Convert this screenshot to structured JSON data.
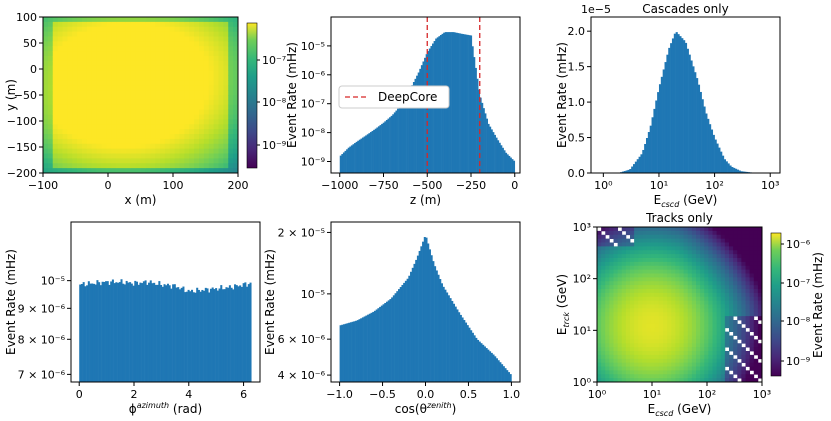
{
  "figure": {
    "panels": [
      {
        "id": "xy",
        "xlabel": "x (m)",
        "ylabel": "y (m)",
        "title": "",
        "xticks": [
          "−100",
          "0",
          "100",
          "200"
        ],
        "yticks": [
          "100",
          "50",
          "0",
          "−50",
          "−100",
          "−150",
          "−200"
        ],
        "colorbar": {
          "ticks": [
            "10⁻⁷",
            "10⁻⁸",
            "10⁻⁹"
          ],
          "label": ""
        }
      },
      {
        "id": "z",
        "xlabel": "z (m)",
        "ylabel": "Event Rate (mHz)",
        "title": "",
        "xticks": [
          "−1000",
          "−750",
          "−500",
          "−250",
          "0"
        ],
        "yticks": [
          "10⁻⁵",
          "10⁻⁶",
          "10⁻⁷",
          "10⁻⁸",
          "10⁻⁹"
        ],
        "legend": "DeepCore"
      },
      {
        "id": "ecscd",
        "xlabel": "E",
        "xlabel_sub": "cscd",
        "xlabel_unit": " (GeV)",
        "ylabel": "Event Rate (mHz)",
        "title": "Cascades only",
        "offset": "1e−5",
        "xticks": [
          "10⁰",
          "10¹",
          "10²",
          "10³"
        ],
        "yticks": [
          "0.0",
          "0.5",
          "1.0",
          "1.5",
          "2.0"
        ]
      },
      {
        "id": "phi",
        "xlabel": "ϕ",
        "xlabel_sup": "azimuth",
        "xlabel_unit": " (rad)",
        "ylabel": "Event Rate (mHz)",
        "title": "",
        "xticks": [
          "0",
          "2",
          "4",
          "6"
        ],
        "yticks": [
          "10⁻⁵",
          "9 × 10⁻⁶",
          "8 × 10⁻⁶",
          "7 × 10⁻⁶"
        ]
      },
      {
        "id": "cos",
        "xlabel": "cos(θ",
        "xlabel_sup": "zenith",
        "xlabel_unit": ")",
        "ylabel": "Event Rate (mHz)",
        "title": "",
        "xticks": [
          "−1.0",
          "−0.5",
          "0.0",
          "0.5",
          "1.0"
        ],
        "yticks": [
          "2 × 10⁻⁵",
          "10⁻⁵",
          "6 × 10⁻⁶",
          "4 × 10⁻⁶"
        ]
      },
      {
        "id": "tracks",
        "xlabel": "E",
        "xlabel_sub": "cscd",
        "xlabel_unit": " (GeV)",
        "ylabel": "E",
        "ylabel_sub": "trck",
        "ylabel_unit": " (GeV)",
        "title": "Tracks only",
        "xticks": [
          "10⁰",
          "10¹",
          "10²",
          "10³"
        ],
        "yticks": [
          "10³",
          "10²",
          "10¹",
          "10⁰"
        ],
        "colorbar": {
          "ticks": [
            "10⁻⁶",
            "10⁻⁷",
            "10⁻⁸",
            "10⁻⁹"
          ],
          "label": "Event Rate (mHz)"
        }
      }
    ]
  },
  "chart_data": [
    {
      "type": "heatmap",
      "xlabel": "x (m)",
      "ylabel": "y (m)",
      "xlim": [
        -100,
        200
      ],
      "ylim": [
        -200,
        100
      ],
      "colorscale": "viridis",
      "color_range": [
        3e-10,
        3e-07
      ],
      "log_color": true,
      "hotspots": [
        {
          "x": 40,
          "y": 30,
          "rate": 2e-07
        },
        {
          "x": -20,
          "y": 15,
          "rate": 1.5e-07
        },
        {
          "x": 100,
          "y": 15,
          "rate": 1.3e-07
        },
        {
          "x": 40,
          "y": -80,
          "rate": 3e-07
        },
        {
          "x": -10,
          "y": -70,
          "rate": 2e-07
        }
      ]
    },
    {
      "type": "bar",
      "xlabel": "z (m)",
      "ylabel": "Event Rate (mHz)",
      "xlim": [
        -1050,
        30
      ],
      "ylim": [
        4e-10,
        0.0001
      ],
      "log_y": true,
      "color": "#1f77b4",
      "x": [
        -1000,
        -950,
        -900,
        -850,
        -800,
        -750,
        -700,
        -650,
        -600,
        -550,
        -500,
        -450,
        -400,
        -350,
        -300,
        -250,
        -200,
        -150,
        -100,
        -50,
        0
      ],
      "values": [
        1.5e-09,
        3e-09,
        5e-09,
        8e-09,
        1.3e-08,
        2.2e-08,
        4e-08,
        9e-08,
        3e-07,
        1.2e-06,
        6e-06,
        1.8e-05,
        3e-05,
        3e-05,
        2.6e-05,
        2.3e-05,
        2e-07,
        2e-08,
        6e-09,
        2e-09,
        1e-09
      ],
      "lines": [
        {
          "x": -500,
          "label": "DeepCore",
          "color": "#d62728"
        },
        {
          "x": -200,
          "label": "DeepCore",
          "color": "#d62728"
        }
      ]
    },
    {
      "type": "bar",
      "title": "Cascades only",
      "xlabel": "E_cscd (GeV)",
      "ylabel": "Event Rate (mHz)",
      "log_x": true,
      "xlim": [
        0.6,
        1500
      ],
      "ylim": [
        0,
        2.2e-05
      ],
      "color": "#1f77b4",
      "x": [
        1,
        1.5,
        2,
        3,
        5,
        7,
        10,
        15,
        20,
        30,
        50,
        70,
        100,
        150,
        200,
        300,
        500,
        1000
      ],
      "values": [
        0,
        1e-08,
        8e-08,
        5e-07,
        2.8e-06,
        6.5e-06,
        1.2e-05,
        1.75e-05,
        2e-05,
        1.85e-05,
        1.3e-05,
        8.5e-06,
        5e-06,
        2e-06,
        9e-07,
        2.5e-07,
        4e-08,
        0
      ]
    },
    {
      "type": "bar",
      "xlabel": "ϕ^azimuth (rad)",
      "ylabel": "Event Rate (mHz)",
      "xlim": [
        -0.3,
        6.6
      ],
      "ylim": [
        6.8e-06,
        1.25e-05
      ],
      "log_y": true,
      "color": "#1f77b4",
      "x": [
        0,
        0.5,
        1,
        1.5,
        2,
        2.5,
        3,
        3.5,
        4,
        4.5,
        5,
        5.5,
        6.28
      ],
      "values": [
        9.85e-06,
        9.9e-06,
        9.95e-06,
        9.95e-06,
        9.9e-06,
        9.95e-06,
        9.85e-06,
        9.8e-06,
        9.6e-06,
        9.65e-06,
        9.7e-06,
        9.75e-06,
        9.9e-06
      ]
    },
    {
      "type": "bar",
      "xlabel": "cos(θ^zenith)",
      "ylabel": "Event Rate (mHz)",
      "xlim": [
        -1.1,
        1.1
      ],
      "ylim": [
        3.7e-06,
        2.25e-05
      ],
      "log_y": true,
      "color": "#1f77b4",
      "x": [
        -1,
        -0.8,
        -0.6,
        -0.4,
        -0.2,
        -0.1,
        0,
        0.1,
        0.2,
        0.4,
        0.6,
        0.8,
        1
      ],
      "values": [
        7e-06,
        7.4e-06,
        8.2e-06,
        9.5e-06,
        1.2e-05,
        1.5e-05,
        1.95e-05,
        1.4e-05,
        1.1e-05,
        8e-06,
        6e-06,
        5e-06,
        4e-06
      ]
    },
    {
      "type": "heatmap",
      "title": "Tracks only",
      "xlabel": "E_cscd (GeV)",
      "ylabel": "E_trck (GeV)",
      "log_x": true,
      "log_y": true,
      "xlim": [
        1,
        1000
      ],
      "ylim": [
        1,
        1000
      ],
      "colorscale": "viridis",
      "color_range": [
        2e-10,
        3e-06
      ],
      "log_color": true,
      "peak": {
        "x": 10,
        "y": 12,
        "rate": 2e-06
      }
    }
  ]
}
